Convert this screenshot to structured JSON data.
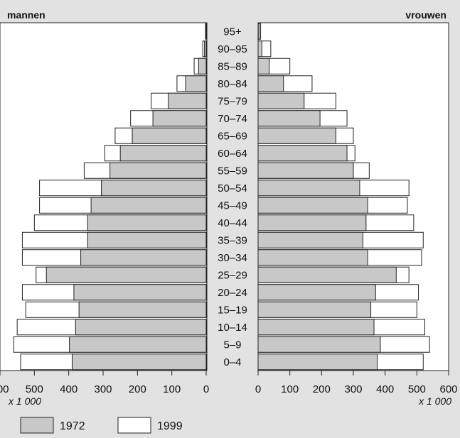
{
  "chart_data": {
    "type": "bar",
    "subtype": "population-pyramid",
    "orientation": "horizontal",
    "panels": [
      {
        "key": "men",
        "label": "mannen",
        "side": "left"
      },
      {
        "key": "women",
        "label": "vrouwen",
        "side": "right"
      }
    ],
    "series": [
      {
        "name": "1972",
        "color": "#c8c8c8"
      },
      {
        "name": "1999",
        "color": "#ffffff"
      }
    ],
    "categories": [
      "0–4",
      "5–9",
      "10–14",
      "15–19",
      "20–24",
      "25–29",
      "30–34",
      "35–39",
      "40–44",
      "45–49",
      "50–54",
      "55–59",
      "60–64",
      "65–69",
      "70–74",
      "75–79",
      "80–84",
      "85–89",
      "90–95",
      "95+"
    ],
    "men": {
      "1972": [
        390,
        398,
        380,
        370,
        385,
        465,
        365,
        345,
        345,
        335,
        305,
        280,
        250,
        215,
        155,
        110,
        60,
        22,
        5,
        1
      ],
      "1999": [
        540,
        560,
        550,
        525,
        535,
        495,
        535,
        535,
        500,
        485,
        485,
        355,
        295,
        265,
        220,
        160,
        85,
        35,
        10,
        2
      ]
    },
    "women": {
      "1972": [
        375,
        385,
        365,
        355,
        370,
        435,
        345,
        330,
        340,
        345,
        320,
        300,
        280,
        245,
        195,
        145,
        80,
        35,
        12,
        3
      ],
      "1999": [
        520,
        540,
        525,
        500,
        505,
        475,
        515,
        520,
        490,
        470,
        475,
        350,
        305,
        300,
        280,
        245,
        170,
        100,
        40,
        8
      ]
    },
    "x_ticks": [
      600,
      500,
      400,
      300,
      200,
      100,
      0
    ],
    "x_range": [
      0,
      600
    ],
    "x_unit": "x 1 000",
    "grid": false,
    "legend_position": "bottom-left"
  }
}
